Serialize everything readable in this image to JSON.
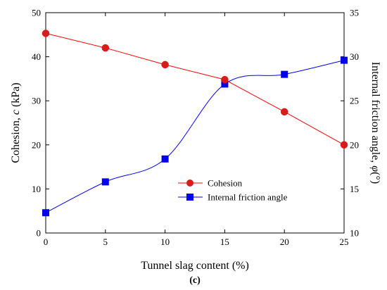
{
  "chart_data": {
    "type": "line",
    "panel_label": "(c)",
    "xlabel": "Tunnel slag content (%)",
    "ylabel_left": {
      "prefix": "Cohesion, ",
      "symbol": "c",
      "suffix": " (kPa)"
    },
    "ylabel_right": {
      "prefix": "Internal friction angle, ",
      "symbol": "φ",
      "suffix": "(°)"
    },
    "x": [
      0,
      5,
      10,
      15,
      20,
      25
    ],
    "xlim": [
      0,
      25
    ],
    "x_ticks": [
      "0",
      "5",
      "10",
      "15",
      "20",
      "25"
    ],
    "ylim_left": [
      0,
      50
    ],
    "y_ticks_left": [
      "0",
      "10",
      "20",
      "30",
      "40",
      "50"
    ],
    "ylim_right": [
      10,
      35
    ],
    "y_ticks_right": [
      "10",
      "15",
      "20",
      "25",
      "30",
      "35"
    ],
    "grid": false,
    "legend_position": "lower-right",
    "series": [
      {
        "name": "Cohesion",
        "axis": "left",
        "marker": "circle",
        "color": "#ff0000",
        "marker_color": "#d81b1b",
        "smooth": false,
        "values": [
          45.3,
          42.0,
          38.2,
          34.8,
          27.5,
          20.0
        ]
      },
      {
        "name": "Internal friction angle",
        "axis": "right",
        "marker": "square",
        "color": "#0000ff",
        "marker_color": "#0000ee",
        "smooth": true,
        "values": [
          12.3,
          15.8,
          18.4,
          26.9,
          28.0,
          29.6
        ]
      }
    ]
  }
}
